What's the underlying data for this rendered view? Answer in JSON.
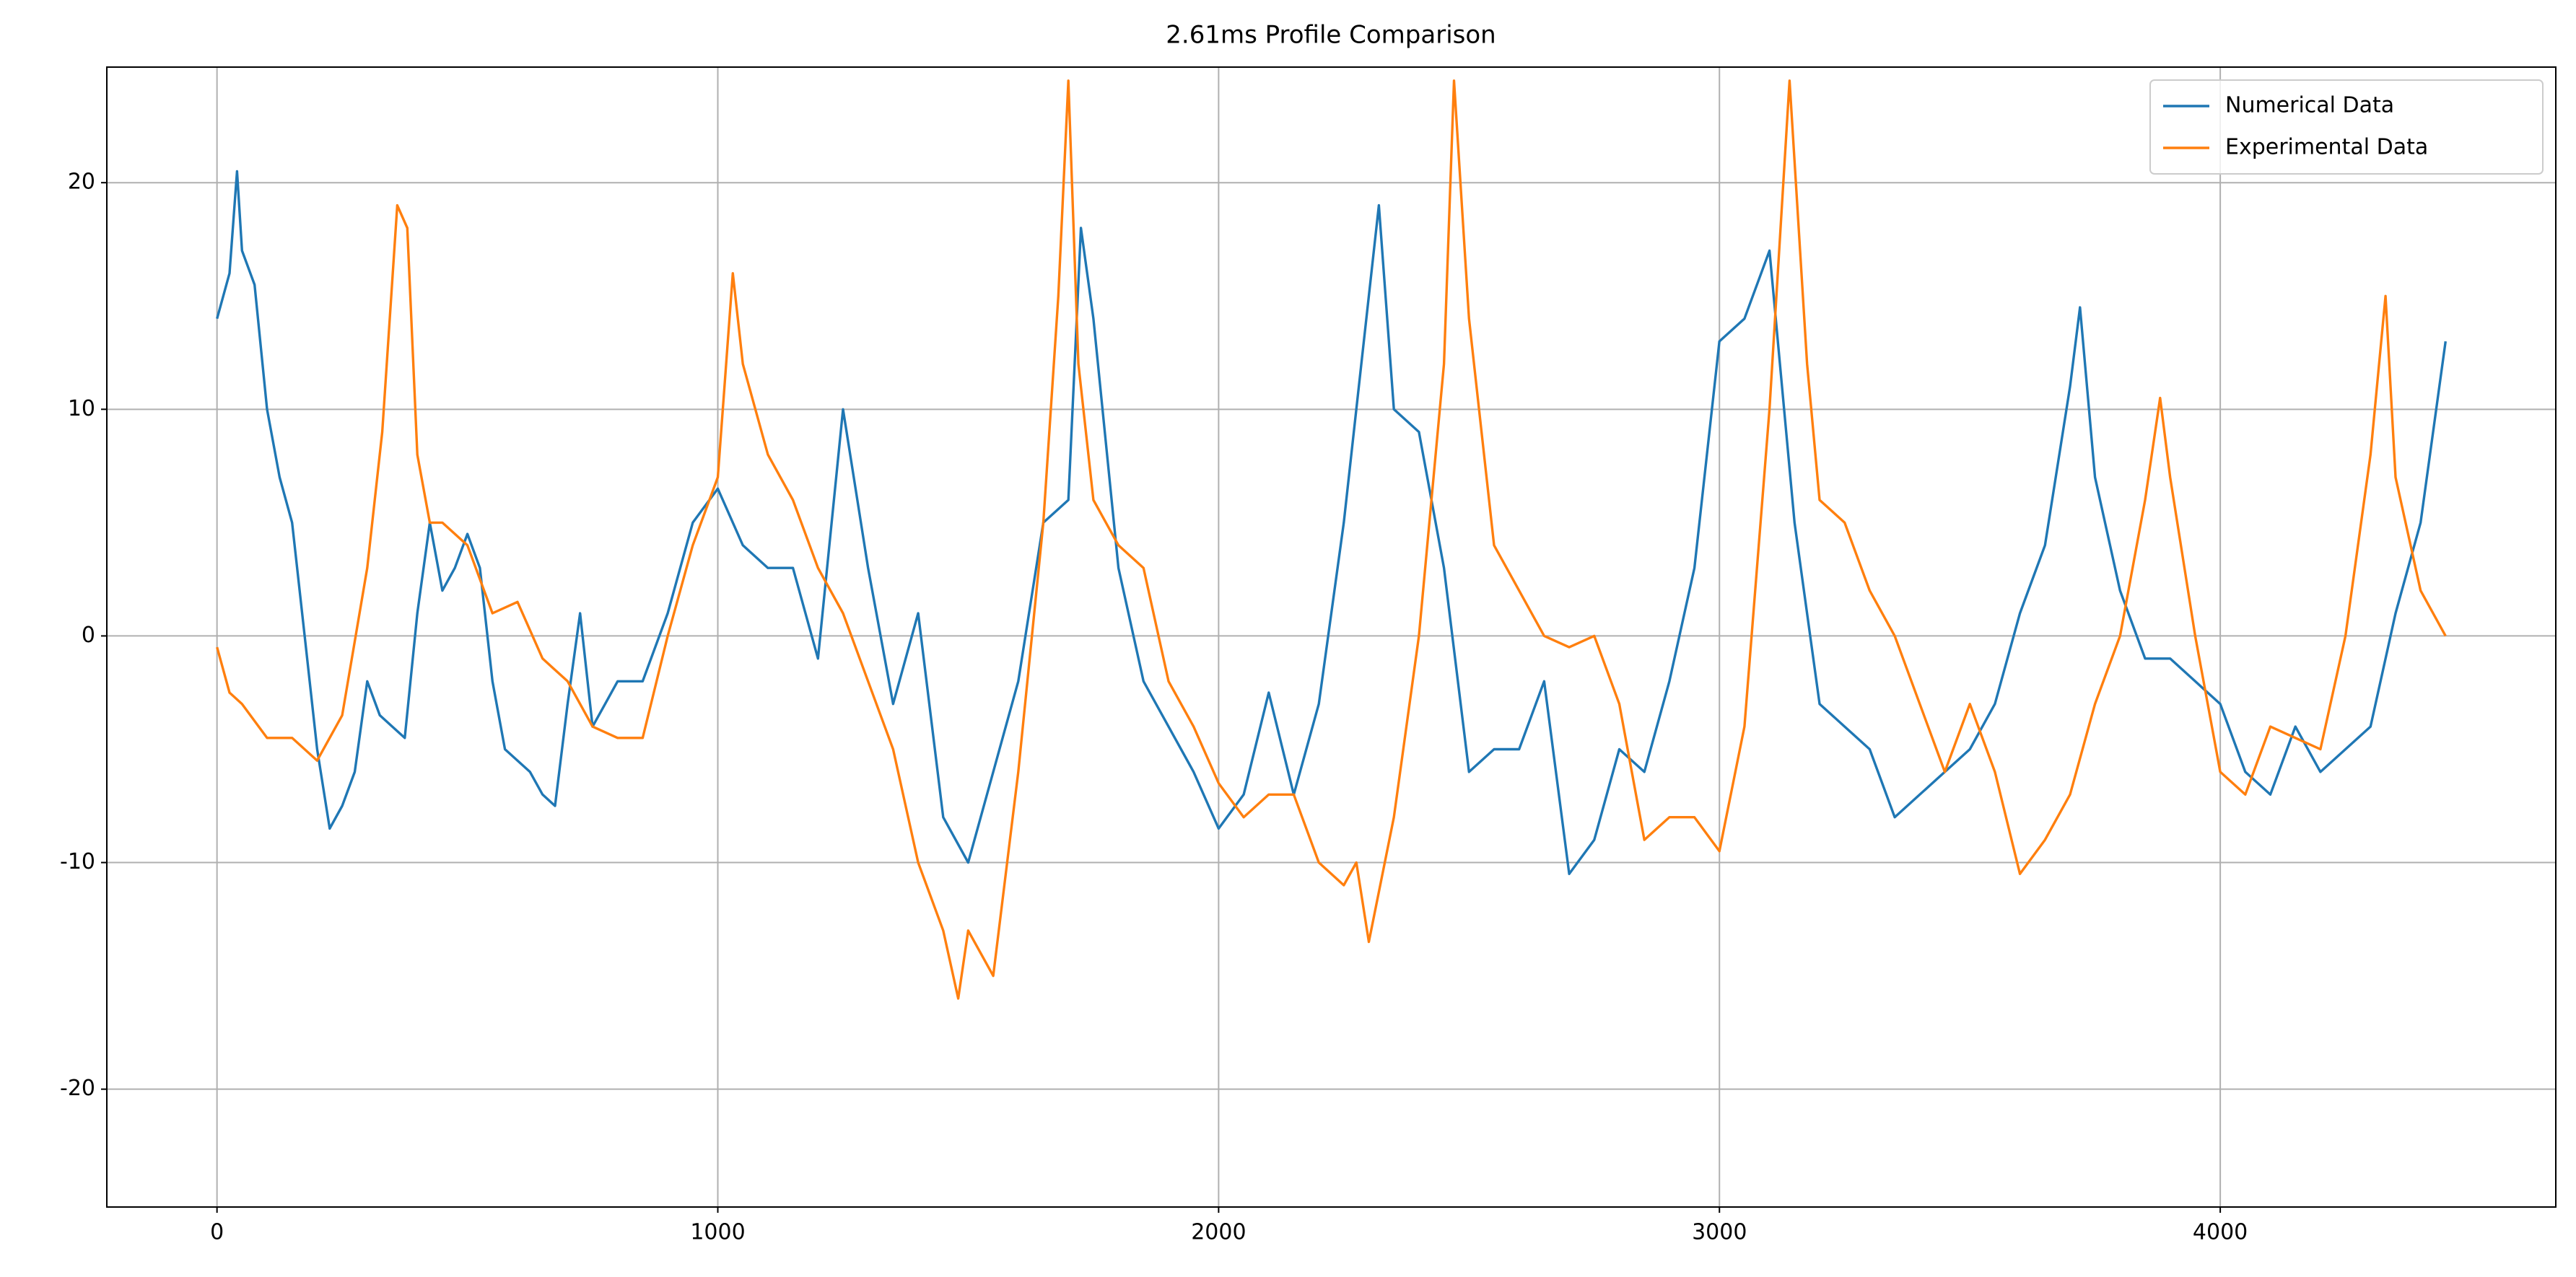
{
  "chart_data": {
    "type": "line",
    "title": "2.61ms Profile Comparison",
    "xlim": [
      -220,
      4670
    ],
    "ylim": [
      -25.2,
      25.1
    ],
    "xticks": [
      0,
      1000,
      2000,
      3000,
      4000
    ],
    "yticks": [
      -20,
      -10,
      0,
      10,
      20
    ],
    "grid": true,
    "legend": "upper right",
    "series": [
      {
        "name": "Numerical Data",
        "color": "#1f77b4",
        "x": [
          0,
          25,
          40,
          50,
          75,
          100,
          125,
          150,
          175,
          200,
          225,
          250,
          275,
          300,
          325,
          350,
          375,
          400,
          425,
          450,
          475,
          500,
          525,
          550,
          575,
          600,
          625,
          650,
          675,
          700,
          725,
          750,
          775,
          800,
          850,
          900,
          950,
          1000,
          1050,
          1100,
          1150,
          1200,
          1250,
          1300,
          1350,
          1400,
          1450,
          1500,
          1550,
          1600,
          1650,
          1700,
          1725,
          1750,
          1800,
          1850,
          1900,
          1950,
          2000,
          2050,
          2100,
          2150,
          2200,
          2250,
          2300,
          2320,
          2350,
          2400,
          2450,
          2500,
          2550,
          2600,
          2650,
          2700,
          2750,
          2800,
          2850,
          2900,
          2950,
          3000,
          3050,
          3100,
          3150,
          3200,
          3250,
          3300,
          3350,
          3400,
          3450,
          3500,
          3550,
          3600,
          3650,
          3700,
          3720,
          3750,
          3800,
          3850,
          3900,
          3950,
          4000,
          4050,
          4100,
          4150,
          4200,
          4250,
          4300,
          4350,
          4400,
          4450
        ],
        "values": [
          14,
          16,
          20.5,
          17,
          15.5,
          10,
          7,
          5,
          0,
          -5,
          -8.5,
          -7.5,
          -6,
          -2,
          -3.5,
          -4,
          -4.5,
          1,
          5,
          2,
          3,
          4.5,
          3,
          -2,
          -5,
          -5.5,
          -6,
          -7,
          -7.5,
          -3,
          1,
          -4,
          -3,
          -2,
          -2,
          1,
          5,
          6.5,
          4,
          3,
          3,
          -1,
          10,
          3,
          -3,
          1,
          -8,
          -10,
          -6,
          -2,
          5,
          6,
          18,
          14,
          3,
          -2,
          -4,
          -6,
          -8.5,
          -7,
          -2.5,
          -7,
          -3,
          5,
          15,
          19,
          10,
          9,
          3,
          -6,
          -5,
          -5,
          -2,
          -10.5,
          -9,
          -5,
          -6,
          -2,
          3,
          13,
          14,
          17,
          5,
          -3,
          -4,
          -5,
          -8,
          -7,
          -6,
          -5,
          -3,
          1,
          4,
          11,
          14.5,
          7,
          2,
          -1,
          -1,
          -2,
          -3,
          -6,
          -7,
          -4,
          -6,
          -5,
          -4,
          1,
          5,
          13
        ]
      },
      {
        "name": "Experimental Data",
        "color": "#ff7f0e",
        "x": [
          0,
          25,
          50,
          100,
          150,
          200,
          250,
          300,
          330,
          360,
          380,
          400,
          425,
          450,
          500,
          550,
          600,
          650,
          700,
          750,
          800,
          850,
          900,
          950,
          1000,
          1030,
          1050,
          1100,
          1150,
          1200,
          1250,
          1300,
          1350,
          1400,
          1450,
          1480,
          1500,
          1550,
          1600,
          1650,
          1680,
          1700,
          1720,
          1750,
          1800,
          1850,
          1900,
          1950,
          2000,
          2050,
          2100,
          2150,
          2200,
          2250,
          2275,
          2300,
          2350,
          2400,
          2450,
          2470,
          2500,
          2550,
          2600,
          2650,
          2700,
          2750,
          2800,
          2850,
          2900,
          2950,
          3000,
          3050,
          3100,
          3140,
          3175,
          3200,
          3250,
          3300,
          3350,
          3400,
          3450,
          3500,
          3550,
          3600,
          3650,
          3700,
          3750,
          3800,
          3850,
          3880,
          3900,
          3950,
          4000,
          4050,
          4100,
          4150,
          4200,
          4250,
          4300,
          4330,
          4350,
          4400,
          4450
        ],
        "values": [
          -0.5,
          -2.5,
          -3,
          -4.5,
          -4.5,
          -5.5,
          -3.5,
          3,
          9,
          19,
          18,
          8,
          5,
          5,
          4,
          1,
          1.5,
          -1,
          -2,
          -4,
          -4.5,
          -4.5,
          0,
          4,
          7,
          16,
          12,
          8,
          6,
          3,
          1,
          -2,
          -5,
          -10,
          -13,
          -16,
          -13,
          -15,
          -6,
          5,
          15,
          24.5,
          12,
          6,
          4,
          3,
          -2,
          -4,
          -6.5,
          -8,
          -7,
          -7,
          -10,
          -11,
          -10,
          -13.5,
          -8,
          0,
          12,
          24.5,
          14,
          4,
          2,
          0,
          -0.5,
          0,
          -3,
          -9,
          -8,
          -8,
          -9.5,
          -4,
          10,
          24.5,
          12,
          6,
          5,
          2,
          0,
          -3,
          -6,
          -3,
          -6,
          -10.5,
          -9,
          -7,
          -3,
          0,
          6,
          10.5,
          7,
          0,
          -6,
          -7,
          -4,
          -4.5,
          -5,
          0,
          8,
          15,
          7,
          2,
          0
        ]
      }
    ]
  }
}
